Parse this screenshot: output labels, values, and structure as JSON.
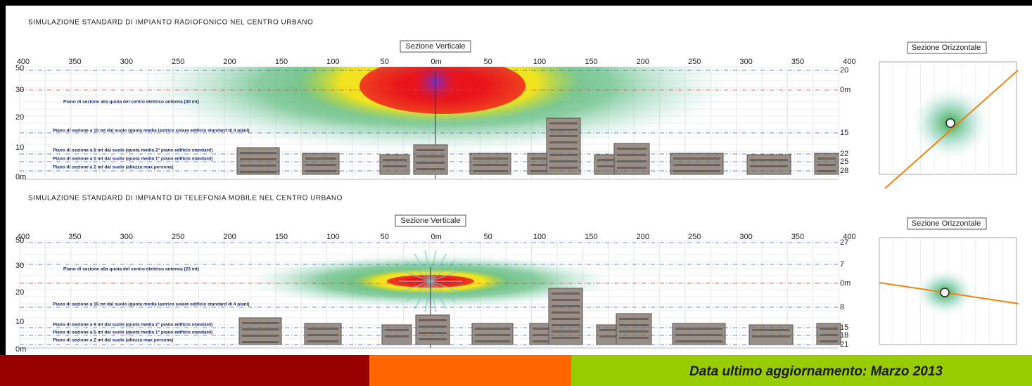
{
  "panels": [
    {
      "title": "SIMULAZIONE STANDARD DI IMPIANTO RADIOFONICO NEL CENTRO URBANO",
      "vertical_label": "Sezione Verticale",
      "horizontal_label": "Sezione Orizzontale",
      "distance_labels": [
        "400",
        "350",
        "300",
        "250",
        "200",
        "150",
        "100",
        "50",
        "0m",
        "50",
        "100",
        "150",
        "200",
        "250",
        "300",
        "350",
        "400"
      ],
      "height_labels": [
        "50",
        "30",
        "20",
        "10",
        "0m"
      ],
      "right_labels": [
        "20",
        "0m",
        "15",
        "22",
        "25",
        "28"
      ],
      "annotations": [
        "Piano di sezione alla quota del centro elettrico antenna (30 mt)",
        "Piano di sezione a 15 mt dal suolo (quota media lastrico solare edificio standard di 4 piani)",
        "Piano di sezione a 8 mt dal suolo (quota media 2° piano edificio standard)",
        "Piano di sezione a 5 mt dal suolo (quota media 1° piano edificio standard)",
        "Piano di sezione a 2 mt dal suolo (altezza max persona)"
      ]
    },
    {
      "title": "SIMULAZIONE STANDARD DI IMPIANTO DI TELEFONIA MOBILE NEL CENTRO URBANO",
      "vertical_label": "Sezione Verticale",
      "horizontal_label": "Sezione Orizzontale",
      "distance_labels": [
        "400",
        "350",
        "300",
        "250",
        "200",
        "150",
        "100",
        "50",
        "0m",
        "50",
        "100",
        "150",
        "200",
        "250",
        "300",
        "350",
        "400"
      ],
      "height_labels": [
        "50",
        "30",
        "20",
        "10",
        "0m"
      ],
      "right_labels": [
        "27",
        "7",
        "0m",
        "8",
        "15",
        "18",
        "21"
      ],
      "annotations": [
        "Piano di sezione alla quota del centro elettrico antenna (23 mt)",
        "Piano di sezione a 15 mt dal suolo (quota media lastrico solare edificio standard di 4 piani)",
        "Piano di sezione a 8 mt dal suolo (quota media 2° piano edificio standard)",
        "Piano di sezione a 5 mt dal suolo (quota media 1° piano edificio standard)",
        "Piano di sezione a 2 mt dal suolo (altezza max persona)"
      ]
    }
  ],
  "footer": "Data ultimo aggiornamento: Marzo 2013"
}
